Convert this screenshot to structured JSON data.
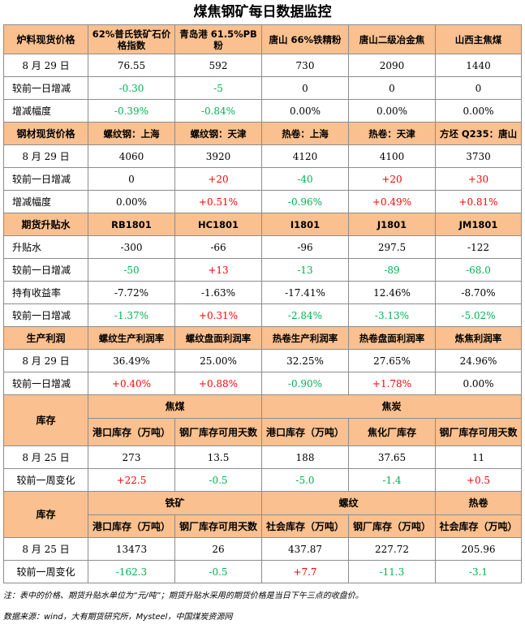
{
  "title": "煤焦钢矿每日数据监控",
  "s1": {
    "header": [
      "炉料现货价格",
      "62%普氏铁矿石价格指数",
      "青岛港 61.5%PB粉",
      "唐山 66%铁精粉",
      "唐山二级冶金焦",
      "山西主焦煤"
    ],
    "rows": [
      {
        "label": "8 月 29 日",
        "cells": [
          "76.55",
          "592",
          "730",
          "2090",
          "1440"
        ]
      },
      {
        "label": "较前一日增减",
        "cells": [
          "-0.30",
          "-5",
          "0",
          "0",
          "0"
        ]
      },
      {
        "label": "增减幅度",
        "cells": [
          "-0.39%",
          "-0.84%",
          "0.00%",
          "0.00%",
          "0.00%"
        ]
      }
    ]
  },
  "s2": {
    "header": [
      "钢材现货价格",
      "螺纹钢：上海",
      "螺纹钢：天津",
      "热卷：上海",
      "热卷：天津",
      "方坯 Q235：唐山"
    ],
    "rows": [
      {
        "label": "8 月 29 日",
        "cells": [
          "4060",
          "3920",
          "4120",
          "4100",
          "3730"
        ]
      },
      {
        "label": "较前一日增减",
        "cells": [
          "0",
          "+20",
          "-40",
          "+20",
          "+30"
        ]
      },
      {
        "label": "增减幅度",
        "cells": [
          "0.00%",
          "+0.51%",
          "-0.96%",
          "+0.49%",
          "+0.81%"
        ]
      }
    ]
  },
  "s3": {
    "header": [
      "期货升贴水",
      "RB1801",
      "HC1801",
      "I1801",
      "J1801",
      "JM1801"
    ],
    "rows": [
      {
        "label": "升贴水",
        "cells": [
          "-300",
          "-66",
          "-96",
          "297.5",
          "-122"
        ]
      },
      {
        "label": "较前一日增减",
        "cells": [
          "-50",
          "+13",
          "-13",
          "-89",
          "-68.0"
        ]
      },
      {
        "label": "持有收益率",
        "cells": [
          "-7.72%",
          "-1.63%",
          "-17.41%",
          "12.46%",
          "-8.70%"
        ]
      },
      {
        "label": "较前一日增减",
        "cells": [
          "-1.37%",
          "+0.31%",
          "-2.84%",
          "-3.13%",
          "-5.02%"
        ]
      }
    ]
  },
  "s4": {
    "header": [
      "生产利润",
      "螺纹生产利润率",
      "螺纹盘面利润率",
      "热卷生产利润率",
      "热卷盘面利润率",
      "炼焦利润率"
    ],
    "rows": [
      {
        "label": "8 月 29 日",
        "cells": [
          "36.49%",
          "25.00%",
          "32.25%",
          "27.65%",
          "24.96%"
        ]
      },
      {
        "label": "较前一日增减",
        "cells": [
          "+0.40%",
          "+0.88%",
          "-0.90%",
          "+1.78%",
          "0.00%"
        ]
      }
    ]
  },
  "s5": {
    "section": "库存",
    "group1": "焦煤",
    "group2": "焦炭",
    "sub": [
      "港口库存（万吨）",
      "钢厂库存可用天数",
      "港口库存（万吨）",
      "焦化厂库存",
      "钢厂库存可用天数"
    ],
    "rows": [
      {
        "label": "8 月 25 日",
        "cells": [
          "273",
          "13.5",
          "188",
          "37.65",
          "11"
        ]
      },
      {
        "label": "较前一周变化",
        "cells": [
          "+22.5",
          "-0.5",
          "-5.0",
          "-1.4",
          "+0.5"
        ]
      }
    ]
  },
  "s6": {
    "section": "库存",
    "group1": "铁矿",
    "group2": "螺纹",
    "group3": "热卷",
    "sub": [
      "港口库存（万吨）",
      "钢厂库存可用天数",
      "社会库存（万吨）",
      "钢厂库存（万吨）",
      "社会库存（万吨）"
    ],
    "rows": [
      {
        "label": "8 月 25 日",
        "cells": [
          "13473",
          "26",
          "437.87",
          "227.72",
          "205.96"
        ]
      },
      {
        "label": "较前一周变化",
        "cells": [
          "-162.3",
          "-0.5",
          "+7.7",
          "-11.3",
          "-3.1"
        ]
      }
    ]
  },
  "notes": {
    "note1": "注：表中的价格、期货升贴水单位为“元/吨”；期货升贴水采用的期货价格是当日下午三点的收盘价。",
    "source": "数据来源：wind，大有期货研究所，Mysteel，中国煤炭资源网"
  },
  "colors": {
    "header_bg": "#fac08f",
    "positive": "#ff0000",
    "negative": "#00b050",
    "border": "#8c8c8c"
  }
}
